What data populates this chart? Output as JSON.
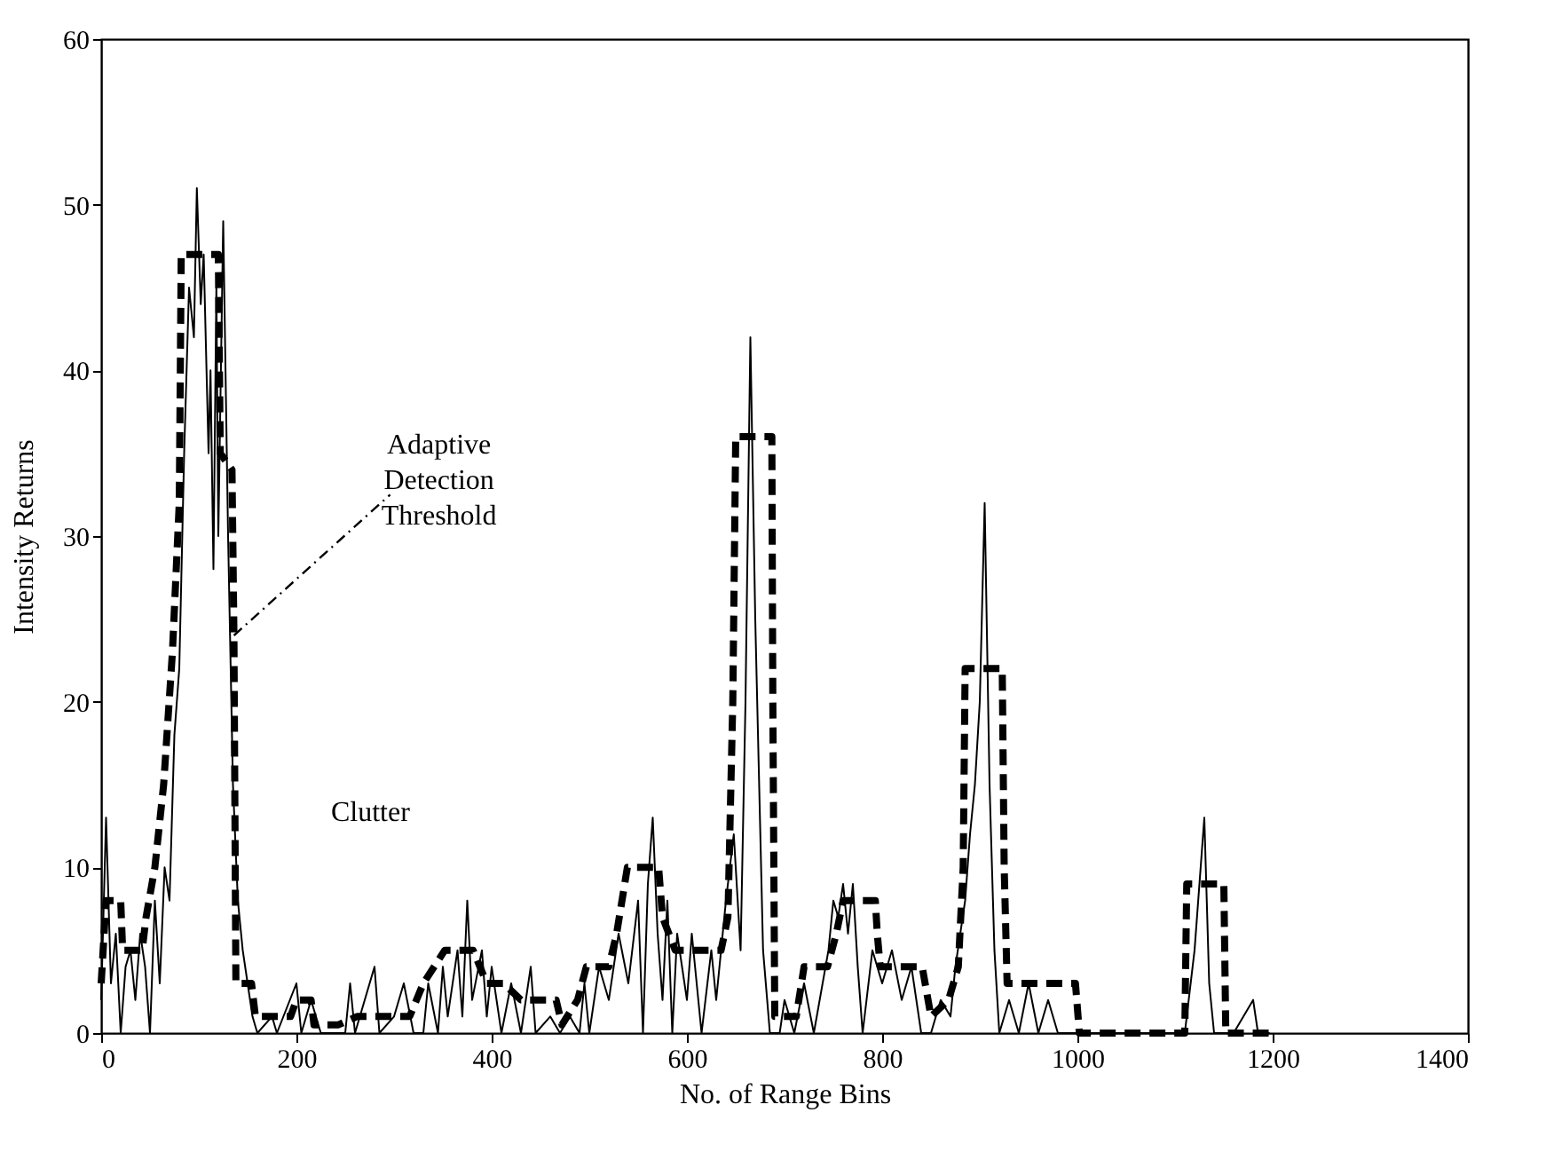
{
  "chart_data": {
    "type": "line",
    "xlabel": "No. of Range Bins",
    "ylabel": "Intensity Returns",
    "xlim": [
      0,
      1400
    ],
    "xticks": [
      0,
      200,
      400,
      600,
      800,
      1000,
      1200,
      1400
    ],
    "ylim": [
      0,
      60
    ],
    "yticks": [
      0,
      10,
      20,
      30,
      40,
      50,
      60
    ],
    "grid": false,
    "marker": "none",
    "annotations": [
      {
        "text": "Adaptive Detection Threshold",
        "x": 136,
        "y": 24
      },
      "Clutter"
    ],
    "series": [
      {
        "color": "#000000",
        "line_style": "solid",
        "x": [
          0,
          5,
          10,
          15,
          20,
          25,
          30,
          35,
          40,
          45,
          50,
          55,
          60,
          65,
          70,
          75,
          80,
          85,
          90,
          95,
          98,
          102,
          105,
          110,
          112,
          115,
          118,
          120,
          125,
          130,
          135,
          140,
          145,
          150,
          155,
          160,
          175,
          180,
          200,
          205,
          215,
          225,
          250,
          255,
          260,
          280,
          285,
          300,
          310,
          320,
          330,
          335,
          345,
          350,
          355,
          365,
          370,
          375,
          380,
          390,
          395,
          400,
          410,
          420,
          430,
          440,
          445,
          460,
          470,
          480,
          490,
          495,
          500,
          510,
          520,
          530,
          540,
          550,
          555,
          560,
          565,
          570,
          575,
          580,
          585,
          590,
          600,
          605,
          615,
          625,
          630,
          640,
          648,
          655,
          660,
          665,
          670,
          678,
          685,
          695,
          700,
          710,
          720,
          730,
          745,
          750,
          755,
          760,
          765,
          770,
          775,
          780,
          790,
          800,
          810,
          820,
          830,
          840,
          850,
          860,
          870,
          875,
          885,
          890,
          895,
          900,
          905,
          910,
          915,
          920,
          930,
          940,
          950,
          960,
          970,
          980,
          1000,
          1060,
          1110,
          1120,
          1130,
          1135,
          1140,
          1160,
          1180,
          1185,
          1197
        ],
        "values": [
          2,
          13,
          3,
          6,
          0,
          4,
          5,
          2,
          6,
          4,
          0,
          8,
          3,
          10,
          8,
          18,
          22,
          35,
          45,
          42,
          51,
          44,
          47,
          35,
          40,
          28,
          45,
          30,
          49,
          30,
          15,
          8,
          5,
          3,
          1,
          0,
          1,
          0,
          3,
          0,
          2,
          0,
          0,
          3,
          0,
          4,
          0,
          1,
          3,
          0,
          0,
          3,
          0,
          4,
          1,
          5,
          1,
          8,
          2,
          5,
          1,
          4,
          0,
          3,
          0,
          4,
          0,
          1,
          0,
          1,
          0,
          3,
          0,
          4,
          2,
          6,
          3,
          8,
          0,
          9,
          13,
          6,
          2,
          8,
          0,
          6,
          2,
          6,
          0,
          5,
          2,
          8,
          12,
          5,
          20,
          42,
          25,
          5,
          0,
          0,
          2,
          0,
          3,
          0,
          5,
          8,
          7,
          9,
          6,
          9,
          4,
          0,
          5,
          3,
          5,
          2,
          4,
          0,
          0,
          2,
          1,
          4,
          8,
          12,
          15,
          20,
          32,
          15,
          5,
          0,
          2,
          0,
          3,
          0,
          2,
          0,
          0,
          0,
          0,
          5,
          13,
          3,
          0,
          0,
          2,
          0,
          0
        ]
      },
      {
        "color": "#000000",
        "line_style": "dashed",
        "x": [
          0,
          5,
          20,
          22,
          42,
          46,
          55,
          64,
          73,
          80,
          82,
          120,
          122,
          134,
          136,
          138,
          154,
          158,
          194,
          200,
          215,
          218,
          243,
          262,
          316,
          330,
          352,
          381,
          395,
          412,
          430,
          466,
          472,
          488,
          497,
          520,
          528,
          539,
          571,
          575,
          588,
          635,
          642,
          647,
          650,
          687,
          688,
          690,
          712,
          720,
          744,
          753,
          760,
          793,
          795,
          798,
          841,
          850,
          868,
          878,
          883,
          885,
          923,
          925,
          928,
          998,
          1002,
          1110,
          1112,
          1150,
          1152,
          1197
        ],
        "values": [
          3,
          8,
          8,
          5,
          5,
          7,
          10,
          15,
          23,
          32,
          47,
          47,
          35,
          34,
          24,
          3,
          3,
          1,
          1,
          2,
          2,
          0.5,
          0.5,
          1,
          1,
          3,
          5,
          5,
          3,
          3,
          2,
          2,
          0.5,
          2,
          4,
          4,
          6,
          10,
          10,
          7,
          5,
          5,
          7,
          20,
          36,
          36,
          20,
          1,
          1,
          4,
          4,
          6,
          8,
          8,
          6,
          4,
          4,
          1,
          2,
          4,
          10,
          22,
          22,
          10,
          3,
          3,
          0,
          0,
          9,
          9,
          0,
          0
        ]
      }
    ]
  }
}
